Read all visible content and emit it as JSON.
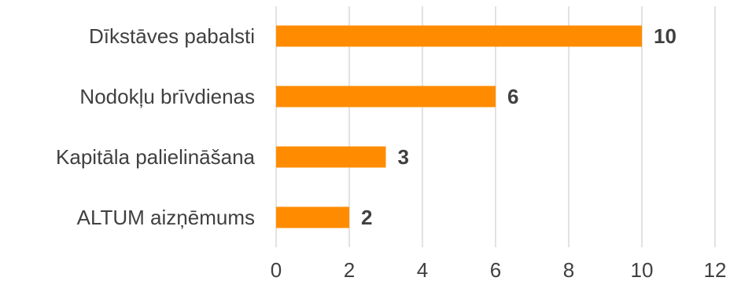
{
  "chart_data": {
    "type": "bar",
    "orientation": "horizontal",
    "categories": [
      "Dīkstāves pabalsti",
      "Nodokļu brīvdienas",
      "Kapitāla palielināšana",
      "ALTUM aizņēmums"
    ],
    "values": [
      10,
      6,
      3,
      2
    ],
    "data_labels": [
      "10",
      "6",
      "3",
      "2"
    ],
    "xlim": [
      0,
      12
    ],
    "x_ticks": [
      0,
      2,
      4,
      6,
      8,
      10,
      12
    ],
    "x_tick_labels": [
      "0",
      "2",
      "4",
      "6",
      "8",
      "10",
      "12"
    ],
    "grid": true,
    "legend": "none",
    "bar_color": "#ff8c00",
    "grid_color": "#d9d9d9",
    "text_color": "#404040"
  }
}
